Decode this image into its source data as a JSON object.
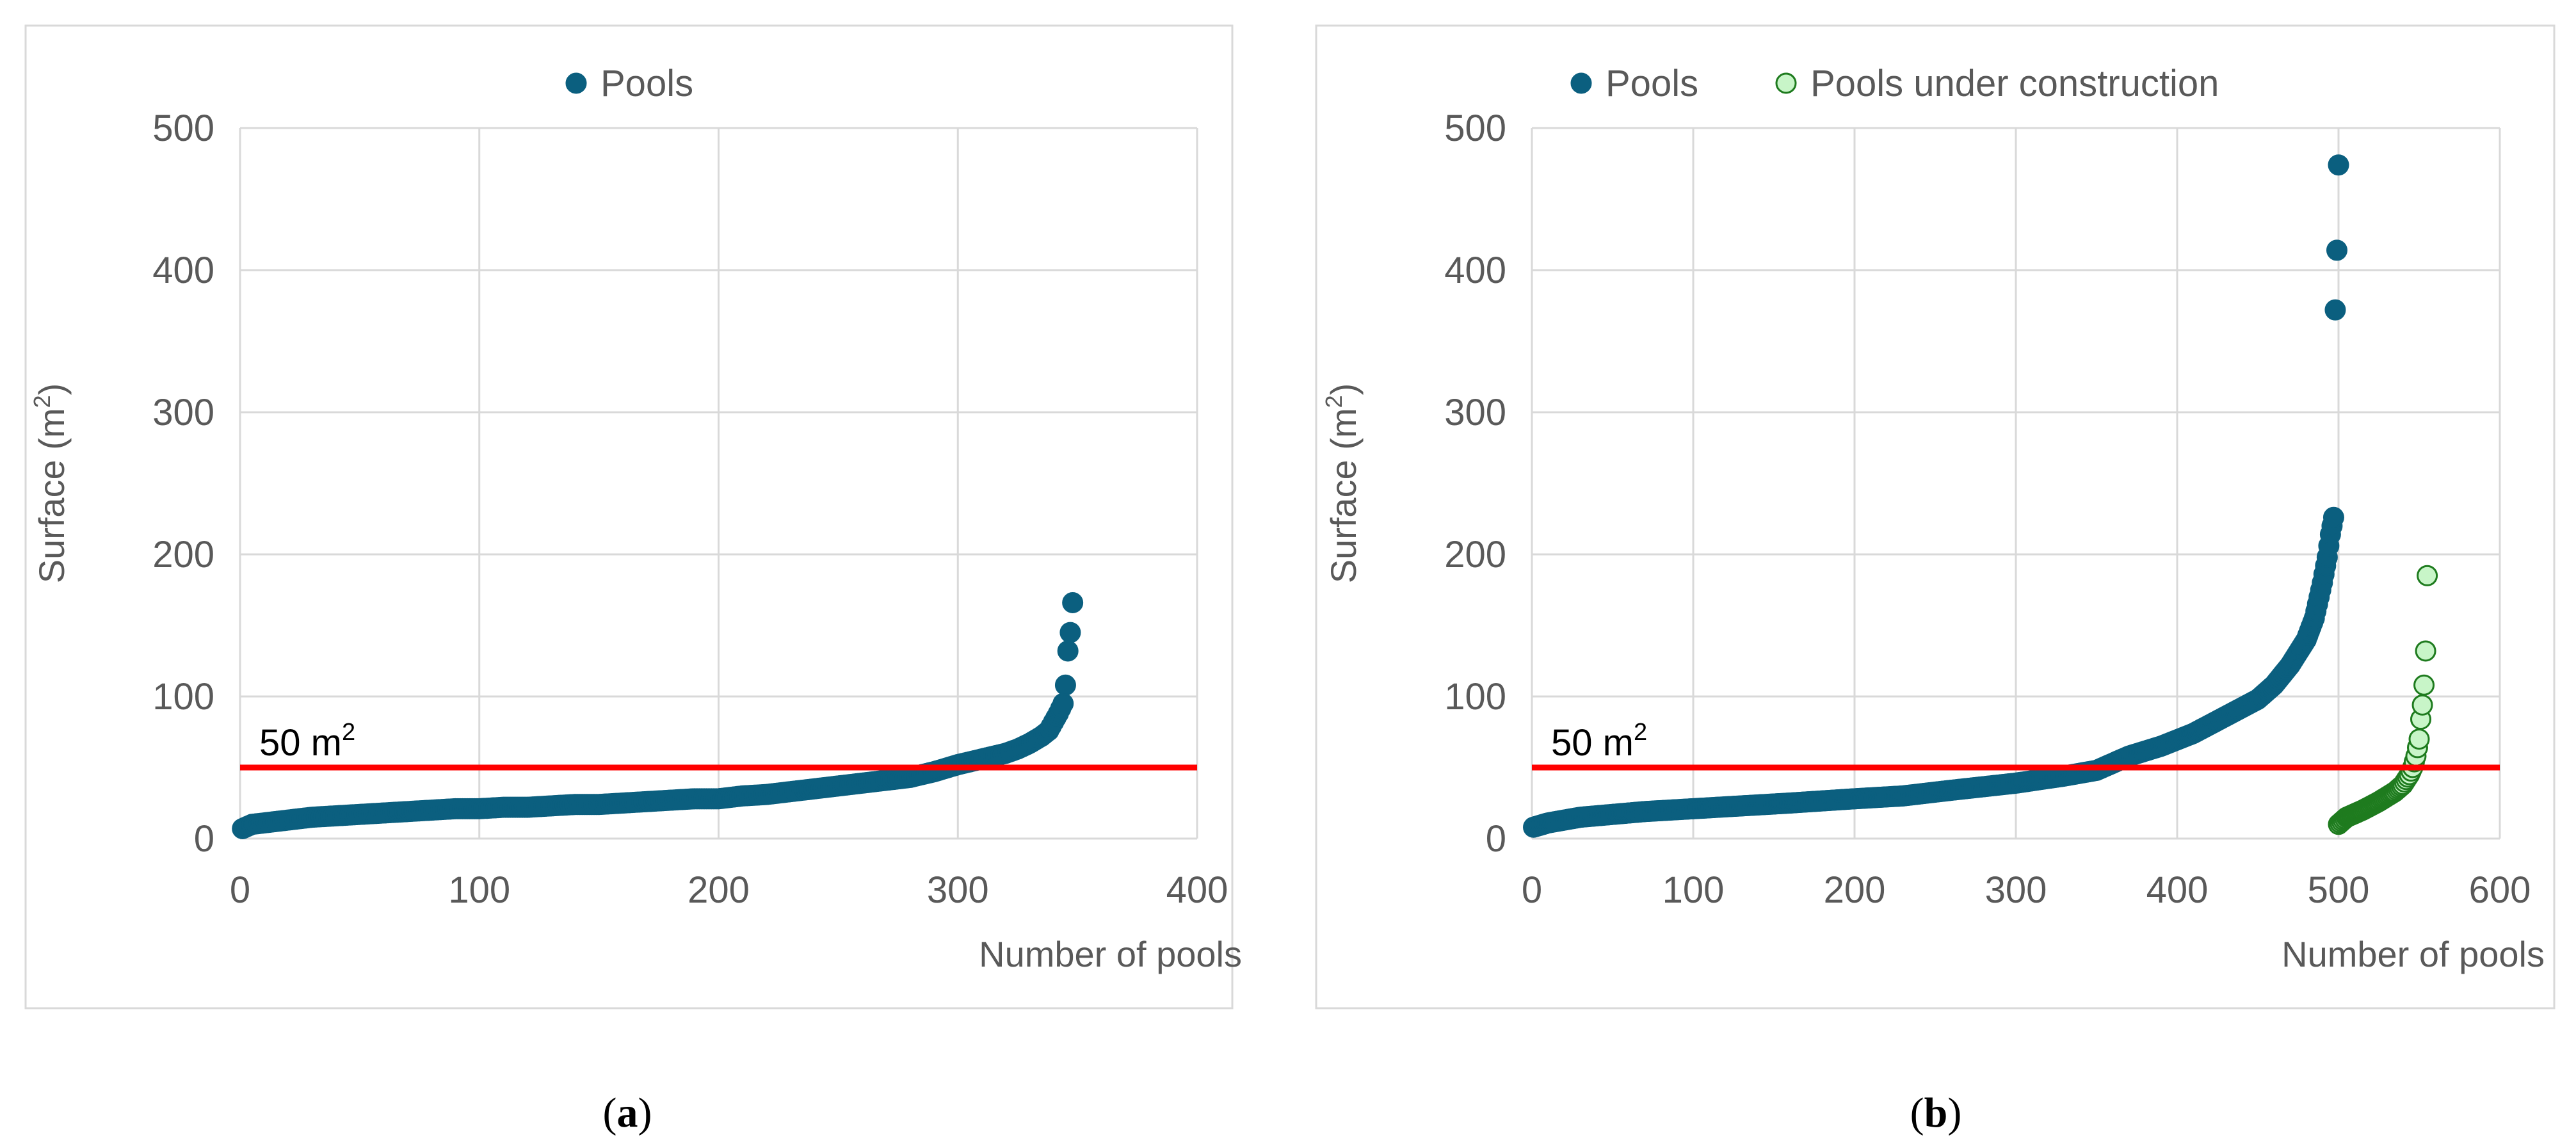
{
  "chart_data": [
    {
      "type": "scatter",
      "caption": {
        "open": "(",
        "letter": "a",
        "close": ")"
      },
      "ylabel": {
        "text": "Surface (m",
        "sup": "2",
        "close": ")"
      },
      "xlabel": "Number of pools",
      "xlim": [
        0,
        400
      ],
      "ylim": [
        0,
        500
      ],
      "xticks": [
        "0",
        "100",
        "200",
        "300",
        "400"
      ],
      "yticks": [
        "0",
        "100",
        "200",
        "300",
        "400",
        "500"
      ],
      "grid": true,
      "legend_position": "top-center",
      "threshold": {
        "y": 50,
        "label": "50 m",
        "sup": "2",
        "color": "#ff0000"
      },
      "series": [
        {
          "name": "Pools",
          "color": "#0b5f7f",
          "edge": "#0b5f7f",
          "curve": [
            [
              1,
              7
            ],
            [
              5,
              10
            ],
            [
              10,
              11
            ],
            [
              15,
              12
            ],
            [
              20,
              13
            ],
            [
              30,
              15
            ],
            [
              40,
              16
            ],
            [
              50,
              17
            ],
            [
              60,
              18
            ],
            [
              70,
              19
            ],
            [
              80,
              20
            ],
            [
              90,
              21
            ],
            [
              100,
              21
            ],
            [
              110,
              22
            ],
            [
              120,
              22
            ],
            [
              130,
              23
            ],
            [
              140,
              24
            ],
            [
              150,
              24
            ],
            [
              160,
              25
            ],
            [
              170,
              26
            ],
            [
              180,
              27
            ],
            [
              190,
              28
            ],
            [
              200,
              28
            ],
            [
              210,
              30
            ],
            [
              220,
              31
            ],
            [
              230,
              33
            ],
            [
              240,
              35
            ],
            [
              250,
              37
            ],
            [
              260,
              39
            ],
            [
              270,
              41
            ],
            [
              280,
              43
            ],
            [
              290,
              47
            ],
            [
              300,
              52
            ],
            [
              310,
              56
            ],
            [
              320,
              60
            ],
            [
              325,
              63
            ],
            [
              330,
              67
            ],
            [
              335,
              72
            ],
            [
              338,
              76
            ],
            [
              340,
              82
            ],
            [
              342,
              88
            ],
            [
              344,
              95
            ],
            [
              345,
              108
            ],
            [
              346,
              132
            ],
            [
              347,
              145
            ],
            [
              348,
              166
            ]
          ],
          "n": 348
        }
      ]
    },
    {
      "type": "scatter",
      "caption": {
        "open": "(",
        "letter": "b",
        "close": ")"
      },
      "ylabel": {
        "text": "Surface (m",
        "sup": "2",
        "close": ")"
      },
      "xlabel": "Number of pools",
      "xlim": [
        0,
        600
      ],
      "ylim": [
        0,
        500
      ],
      "xticks": [
        "0",
        "100",
        "200",
        "300",
        "400",
        "500",
        "600"
      ],
      "yticks": [
        "0",
        "100",
        "200",
        "300",
        "400",
        "500"
      ],
      "grid": true,
      "legend_position": "top-center",
      "threshold": {
        "y": 50,
        "label": "50 m",
        "sup": "2",
        "color": "#ff0000"
      },
      "series": [
        {
          "name": "Pools",
          "color": "#0b5f7f",
          "edge": "#0b5f7f",
          "curve": [
            [
              1,
              8
            ],
            [
              10,
              11
            ],
            [
              20,
              13
            ],
            [
              30,
              15
            ],
            [
              50,
              17
            ],
            [
              70,
              19
            ],
            [
              100,
              21
            ],
            [
              130,
              23
            ],
            [
              160,
              25
            ],
            [
              200,
              28
            ],
            [
              230,
              30
            ],
            [
              260,
              34
            ],
            [
              300,
              39
            ],
            [
              330,
              44
            ],
            [
              350,
              48
            ],
            [
              370,
              58
            ],
            [
              390,
              65
            ],
            [
              410,
              74
            ],
            [
              430,
              86
            ],
            [
              450,
              98
            ],
            [
              460,
              108
            ],
            [
              470,
              122
            ],
            [
              480,
              140
            ],
            [
              485,
              155
            ],
            [
              490,
              180
            ],
            [
              493,
              198
            ],
            [
              495,
              214
            ],
            [
              497,
              226
            ],
            [
              498,
              372
            ],
            [
              499,
              414
            ],
            [
              500,
              474
            ]
          ],
          "n": 500
        },
        {
          "name": "Pools under construction",
          "color": "#c8f5c8",
          "edge": "#1e7b1e",
          "curve": [
            [
              500,
              10
            ],
            [
              505,
              15
            ],
            [
              515,
              20
            ],
            [
              525,
              26
            ],
            [
              535,
              33
            ],
            [
              540,
              38
            ],
            [
              544,
              45
            ],
            [
              546,
              50
            ],
            [
              548,
              58
            ],
            [
              550,
              70
            ],
            [
              551,
              84
            ],
            [
              552,
              94
            ],
            [
              553,
              108
            ],
            [
              554,
              132
            ],
            [
              555,
              185
            ]
          ],
          "n": 56
        }
      ]
    }
  ]
}
